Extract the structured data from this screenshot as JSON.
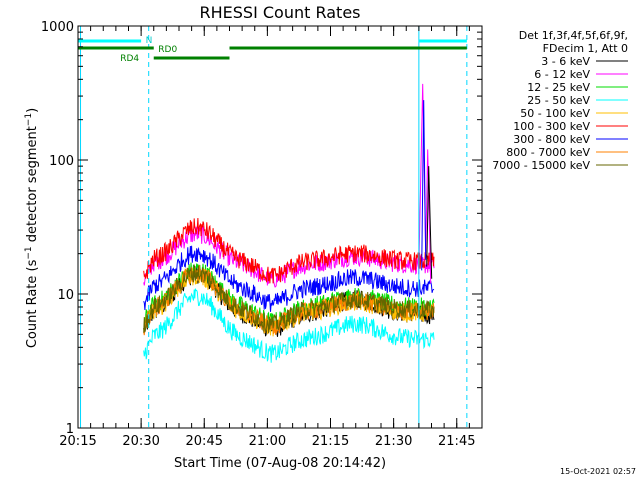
{
  "chart_data": {
    "type": "line",
    "title": "RHESSI Count Rates",
    "xlabel": "Start Time (07-Aug-08 20:14:42)",
    "ylabel": "Count Rate (s⁻¹ detector segment⁻¹)",
    "ylabel_main": "Count Rate (s",
    "ylabel_sup1": "−1",
    "ylabel_mid": " detector segment",
    "ylabel_sup2": "−1",
    "ylabel_end": ")",
    "y_scale": "log",
    "ylim": [
      1,
      1000
    ],
    "xlim_minutes": [
      20.25,
      21.85
    ],
    "x_tick_labels": [
      "20:15",
      "20:30",
      "20:45",
      "21:00",
      "21:15",
      "21:30",
      "21:45"
    ],
    "x_tick_hours": [
      20.25,
      20.5,
      20.75,
      21.0,
      21.25,
      21.5,
      21.75
    ],
    "y_tick_labels": [
      "1",
      "10",
      "100",
      "1000"
    ],
    "y_tick_values": [
      1,
      10,
      100,
      1000
    ],
    "grid": false,
    "legend_position": "right",
    "legend_header": [
      "Det 1f,3f,4f,5f,6f,9f,",
      "FDecim 1, Att 0"
    ],
    "timestamp": "15-Oct-2021 02:57",
    "series": [
      {
        "name": "3 - 6 keV",
        "color": "#000000",
        "base": 7.0,
        "hump": 2.0,
        "late": 1.3
      },
      {
        "name": "6 - 12 keV",
        "color": "#ff00ff",
        "base": 16.5,
        "hump": 1.7,
        "late": 1.15
      },
      {
        "name": "12 - 25 keV",
        "color": "#00dd00",
        "base": 8.0,
        "hump": 1.9,
        "late": 1.2
      },
      {
        "name": "25 - 50 keV",
        "color": "#00ffff",
        "base": 4.6,
        "hump": 2.1,
        "late": 1.3
      },
      {
        "name": "50 - 100 keV",
        "color": "#ffbf00",
        "base": 7.2,
        "hump": 1.9,
        "late": 1.2
      },
      {
        "name": "100 - 300 keV",
        "color": "#ff0000",
        "base": 17.5,
        "hump": 1.8,
        "late": 1.15
      },
      {
        "name": "300 - 800 keV",
        "color": "#0000ff",
        "base": 11.0,
        "hump": 1.85,
        "late": 1.2
      },
      {
        "name": "800 - 7000 keV",
        "color": "#ff8000",
        "base": 7.4,
        "hump": 1.95,
        "late": 1.2
      },
      {
        "name": "7000 - 15000 keV",
        "color": "#666600",
        "base": 7.6,
        "hump": 1.9,
        "late": 1.2
      }
    ],
    "spike": {
      "hour": 21.615,
      "peak": 370,
      "series_color": "#ff00ff"
    },
    "data_window_hours": [
      20.51,
      21.66
    ],
    "orbit_bars": {
      "night_cyan_segments_hours": [
        [
          20.25,
          20.5
        ],
        [
          21.6,
          21.79
        ]
      ],
      "saa_green_segments_hours": [
        [
          20.25,
          20.55
        ],
        [
          20.55,
          20.85
        ],
        [
          20.85,
          21.79
        ]
      ],
      "labels": {
        "n": "N",
        "rd0": "RD0",
        "rd4": "RD4"
      }
    },
    "marker_lines_hours": {
      "solid_cyan": [
        20.26,
        21.6
      ],
      "dashed_cyan": [
        20.53,
        21.79
      ]
    }
  }
}
